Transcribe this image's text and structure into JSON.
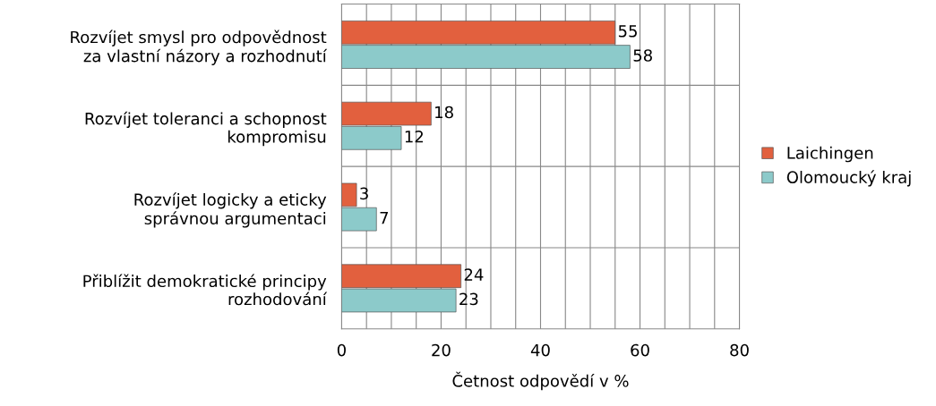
{
  "chart_data": {
    "type": "bar",
    "orientation": "horizontal",
    "xlabel": "Četnost odpovědí v %",
    "categories": [
      "Rozvíjet smysl pro odpovědnost\nza vlastní názory a rozhodnutí",
      "Rozvíjet toleranci a schopnost\nkompromisu",
      "Rozvíjet logicky a eticky\nsprávnou argumentaci",
      "Přiblížit demokratické principy\nrozhodování"
    ],
    "series": [
      {
        "name": "Laichingen",
        "color": "#e2603e",
        "values": [
          55,
          18,
          3,
          24
        ]
      },
      {
        "name": "Olomoucký kraj",
        "color": "#8ccaca",
        "values": [
          58,
          12,
          7,
          23
        ]
      }
    ],
    "xlim": [
      0,
      80
    ],
    "xticks": [
      0,
      {
        "value": 5,
        "label": null
      },
      {
        "value": 10,
        "label": null
      },
      {
        "value": 15,
        "label": null
      },
      20,
      {
        "value": 25,
        "label": null
      },
      {
        "value": 30,
        "label": null
      },
      {
        "value": 35,
        "label": null
      },
      40,
      {
        "value": 45,
        "label": null
      },
      {
        "value": 50,
        "label": null
      },
      {
        "value": 55,
        "label": null
      },
      60,
      {
        "value": 65,
        "label": null
      },
      {
        "value": 70,
        "label": null
      },
      {
        "value": 75,
        "label": null
      },
      80
    ],
    "grid": true,
    "legend": "right",
    "data_labels": true
  }
}
